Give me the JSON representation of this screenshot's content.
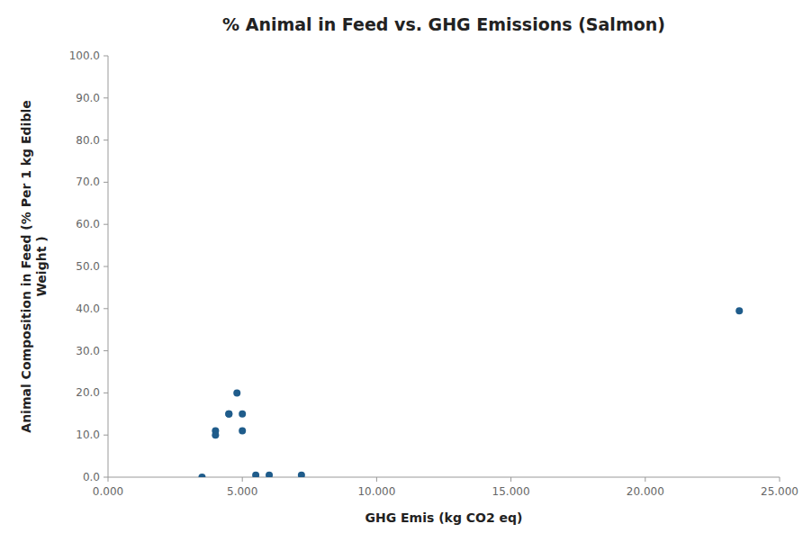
{
  "chart_data": {
    "type": "scatter",
    "title": "% Animal in Feed vs. GHG Emissions (Salmon)",
    "xlabel": "GHG Emis (kg CO2 eq)",
    "ylabel": "Animal Composition in Feed (% Per 1 kg Edible\nWeight )",
    "x": [
      3.5,
      4.0,
      4.0,
      4.5,
      4.5,
      4.8,
      5.0,
      5.0,
      5.5,
      6.0,
      7.2,
      23.5
    ],
    "values": [
      0.0,
      11.0,
      10.0,
      15.0,
      15.0,
      20.0,
      15.0,
      11.0,
      0.5,
      0.5,
      0.5,
      39.5
    ],
    "color": "#1F5C8B",
    "xlim": [
      0,
      25
    ],
    "ylim": [
      0,
      100
    ],
    "xticks": [
      {
        "value": 0,
        "label": "0.000"
      },
      {
        "value": 5,
        "label": "5.000"
      },
      {
        "value": 10,
        "label": "10.000"
      },
      {
        "value": 15,
        "label": "15.000"
      },
      {
        "value": 20,
        "label": "20.000"
      },
      {
        "value": 25,
        "label": "25.000"
      }
    ],
    "yticks": [
      {
        "value": 0,
        "label": "0.0"
      },
      {
        "value": 10,
        "label": "10.0"
      },
      {
        "value": 20,
        "label": "20.0"
      },
      {
        "value": 30,
        "label": "30.0"
      },
      {
        "value": 40,
        "label": "40.0"
      },
      {
        "value": 50,
        "label": "50.0"
      },
      {
        "value": 60,
        "label": "60.0"
      },
      {
        "value": 70,
        "label": "70.0"
      },
      {
        "value": 80,
        "label": "80.0"
      },
      {
        "value": 90,
        "label": "90.0"
      },
      {
        "value": 100,
        "label": "100.0"
      }
    ],
    "grid": false
  }
}
